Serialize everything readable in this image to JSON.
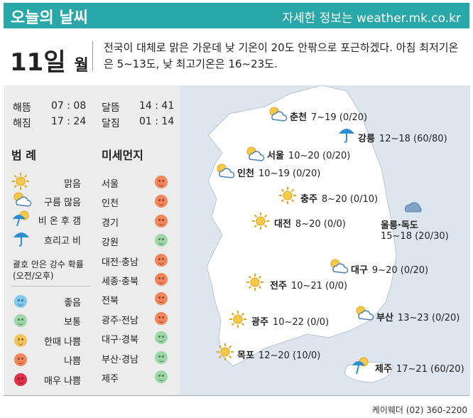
{
  "header": {
    "title": "오늘의 날씨",
    "info": "자세한 정보는 weather.mk.co.kr"
  },
  "date": {
    "day": "11일",
    "unit": "월"
  },
  "summary": "전국이 대체로 맑은 가운데 낮 기온이 20도 안팎으로 포근하겠다. 아침 최저기온은 5~13도, 낮 최고기온은 16~23도.",
  "sun": {
    "rise_label": "해뜸",
    "rise": "07 : 08",
    "set_label": "해짐",
    "set": "17 : 24"
  },
  "moon": {
    "rise_label": "달뜸",
    "rise": "14 : 41",
    "set_label": "달짐",
    "set": "01 : 14"
  },
  "legend": {
    "title": "범 례",
    "items": [
      {
        "icon": "sun-icon",
        "label": "맑음"
      },
      {
        "icon": "cloudy-icon",
        "label": "구름 많음"
      },
      {
        "icon": "rain-then-clear-icon",
        "label": "비 온 후 갬"
      },
      {
        "icon": "umbrella-cloud-icon",
        "label": "흐리고 비"
      }
    ],
    "note": "괄호 안은 강수 확률\n(오전/오후)",
    "dust_levels": [
      {
        "label": "좋음",
        "color": "#7ec8ef"
      },
      {
        "label": "보통",
        "color": "#9bd8a5"
      },
      {
        "label": "한때 나쁨",
        "color": "#f6c25a"
      },
      {
        "label": "나쁨",
        "color": "#f2855a"
      },
      {
        "label": "매우 나쁨",
        "color": "#e0314a"
      }
    ]
  },
  "dust": {
    "title": "미세먼지",
    "regions": [
      {
        "name": "서울",
        "level": "나쁨"
      },
      {
        "name": "인천",
        "level": "나쁨"
      },
      {
        "name": "경기",
        "level": "나쁨"
      },
      {
        "name": "강원",
        "level": "보통"
      },
      {
        "name": "대전·충남",
        "level": "나쁨"
      },
      {
        "name": "세종·충북",
        "level": "나쁨"
      },
      {
        "name": "전북",
        "level": "나쁨"
      },
      {
        "name": "광주·전남",
        "level": "나쁨"
      },
      {
        "name": "대구·경북",
        "level": "보통"
      },
      {
        "name": "부산·경남",
        "level": "보통"
      },
      {
        "name": "제주",
        "level": "보통"
      }
    ]
  },
  "cities": [
    {
      "name": "춘천",
      "value": "7~19 (0/20)",
      "icon": "cloudy-icon"
    },
    {
      "name": "강릉",
      "value": "12~18 (60/80)",
      "icon": "umbrella-cloud-icon"
    },
    {
      "name": "서울",
      "value": "10~20 (0/20)",
      "icon": "cloudy-icon"
    },
    {
      "name": "인천",
      "value": "10~19 (0/20)",
      "icon": "cloudy-icon"
    },
    {
      "name": "충주",
      "value": "8~20 (0/10)",
      "icon": "sun-icon"
    },
    {
      "name": "대전",
      "value": "8~20 (0/0)",
      "icon": "sun-icon"
    },
    {
      "name": "울릉·독도",
      "value": "15~18 (20/30)",
      "icon": "cloud-icon"
    },
    {
      "name": "대구",
      "value": "9~20 (0/20)",
      "icon": "cloudy-icon"
    },
    {
      "name": "전주",
      "value": "10~21 (0/0)",
      "icon": "sun-icon"
    },
    {
      "name": "광주",
      "value": "10~22 (0/0)",
      "icon": "sun-icon"
    },
    {
      "name": "부산",
      "value": "13~23 (0/20)",
      "icon": "cloudy-icon"
    },
    {
      "name": "목포",
      "value": "12~20 (10/0)",
      "icon": "sun-icon"
    },
    {
      "name": "제주",
      "value": "17~21 (60/20)",
      "icon": "rain-then-clear-icon"
    }
  ],
  "credit": "케이웨더 (02) 360-2200",
  "colors": {
    "header": "#2aa7a9",
    "panel": "#ececec",
    "sea": "#dde6ef",
    "land": "#ffffff"
  }
}
